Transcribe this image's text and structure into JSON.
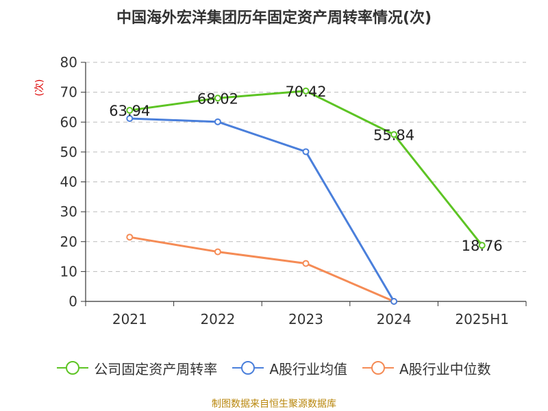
{
  "page": {
    "title": "中国海外宏洋集团历年固定资产周转率情况(次)",
    "source": "制图数据来自恒生聚源数据库"
  },
  "chart_data": {
    "type": "line",
    "title": "中国海外宏洋集团历年固定资产周转率情况(次)",
    "ylabel": "(次)",
    "xlabel": "",
    "categories": [
      "2021",
      "2022",
      "2023",
      "2024",
      "2025H1"
    ],
    "ylim": [
      0,
      80
    ],
    "yticks": [
      0,
      10,
      20,
      30,
      40,
      50,
      60,
      70,
      80
    ],
    "grid": true,
    "legend_position": "bottom",
    "series": [
      {
        "name": "公司固定资产周转率",
        "color": "#5dc424",
        "values": [
          63.94,
          68.02,
          70.42,
          55.84,
          18.76
        ],
        "show_labels": true
      },
      {
        "name": "A股行业均值",
        "color": "#4a7fdb",
        "values": [
          61.2,
          60.1,
          50.1,
          0,
          null
        ],
        "show_labels": false
      },
      {
        "name": "A股行业中位数",
        "color": "#f58b55",
        "values": [
          21.5,
          16.6,
          12.7,
          0,
          null
        ],
        "show_labels": false
      }
    ]
  }
}
